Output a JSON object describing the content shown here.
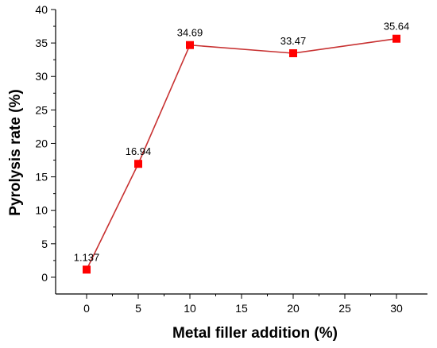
{
  "chart_data": {
    "type": "line",
    "x": [
      0,
      5,
      10,
      20,
      30
    ],
    "y": [
      1.137,
      16.94,
      34.69,
      33.47,
      35.64
    ],
    "point_labels": [
      "1.137",
      "16.94",
      "34.69",
      "33.47",
      "35.64"
    ],
    "xlabel": "Metal filler addition (%)",
    "ylabel": "Pyrolysis rate (%)",
    "xlim": [
      -3,
      33
    ],
    "ylim": [
      -2.5,
      40
    ],
    "xticks": [
      0,
      5,
      10,
      15,
      20,
      25,
      30
    ],
    "yticks": [
      0,
      5,
      10,
      15,
      20,
      25,
      30,
      35,
      40
    ],
    "line_color": "#c83232",
    "marker_color": "#ff0000",
    "marker": "square",
    "grid": false,
    "legend": "none"
  }
}
